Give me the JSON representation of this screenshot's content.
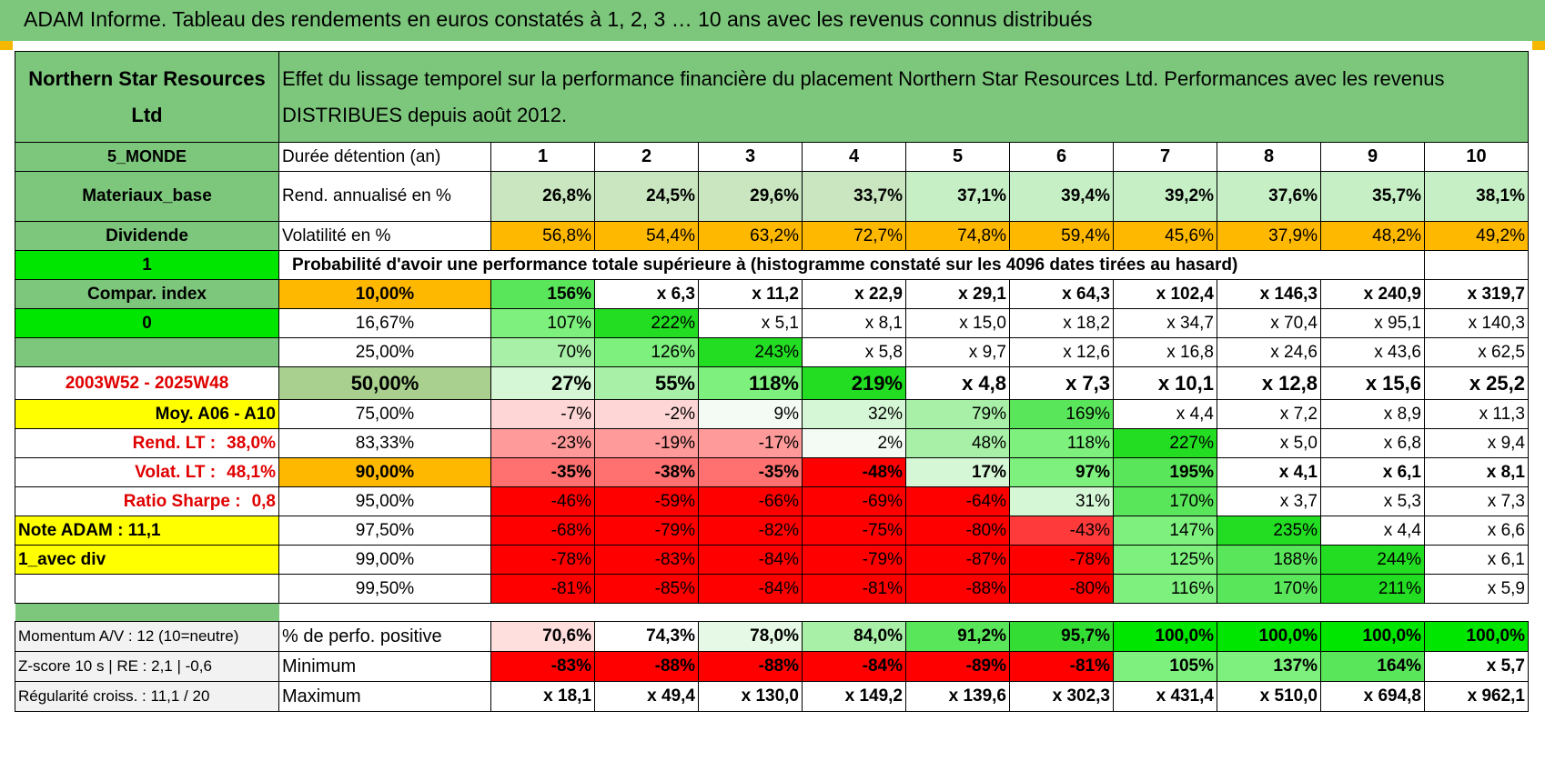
{
  "title": "ADAM Informe. Tableau des rendements en euros constatés à 1, 2, 3 … 10 ans avec les revenus connus distribués",
  "header": {
    "fund_name": "Northern Star Resources Ltd",
    "description": "Effet du lissage temporel sur la performance financière du placement Northern Star Resources Ltd. Performances avec les revenus DISTRIBUES depuis août 2012."
  },
  "side_panel": {
    "zone": "5_MONDE",
    "sector": "Materiaux_base",
    "income_type": "Dividende",
    "flag1": "1",
    "compar_index": "Compar. index",
    "flag2": "0",
    "blank": "",
    "period": "2003W52 - 2025W48",
    "moy": "Moy. A06 - A10",
    "rend_lt_label": "Rend. LT :",
    "rend_lt_value": "38,0%",
    "volat_lt_label": "Volat. LT :",
    "volat_lt_value": "48,1%",
    "sharpe_label": "Ratio Sharpe :",
    "sharpe_value": "0,8",
    "note": "Note ADAM : 11,1",
    "div_type": "1_avec div",
    "momentum": "Momentum A/V : 12 (10=neutre)",
    "zscore": "Z-score 10 s | RE : 2,1 | -0,6",
    "regularite": "Régularité croiss. : 11,1 / 20"
  },
  "table": {
    "duration_label": "Durée détention (an)",
    "years": [
      "1",
      "2",
      "3",
      "4",
      "5",
      "6",
      "7",
      "8",
      "9",
      "10"
    ],
    "rend_label": "Rend. annualisé en %",
    "rend": [
      "26,8%",
      "24,5%",
      "29,6%",
      "33,7%",
      "37,1%",
      "39,4%",
      "39,2%",
      "37,6%",
      "35,7%",
      "38,1%"
    ],
    "vol_label": "Volatilité en %",
    "vol": [
      "56,8%",
      "54,4%",
      "63,2%",
      "72,7%",
      "74,8%",
      "59,4%",
      "45,6%",
      "37,9%",
      "48,2%",
      "49,2%"
    ],
    "prob_title": "Probabilité d'avoir une performance totale supérieure à (histogramme constaté sur les 4096 dates tirées au hasard)",
    "prob_rows": [
      {
        "pct": "10,00%",
        "vals": [
          "156%",
          "x 6,3",
          "x 11,2",
          "x 22,9",
          "x 29,1",
          "x 64,3",
          "x 102,4",
          "x 146,3",
          "x 240,9",
          "x 319,7"
        ]
      },
      {
        "pct": "16,67%",
        "vals": [
          "107%",
          "222%",
          "x 5,1",
          "x 8,1",
          "x 15,0",
          "x 18,2",
          "x 34,7",
          "x 70,4",
          "x 95,1",
          "x 140,3"
        ]
      },
      {
        "pct": "25,00%",
        "vals": [
          "70%",
          "126%",
          "243%",
          "x 5,8",
          "x 9,7",
          "x 12,6",
          "x 16,8",
          "x 24,6",
          "x 43,6",
          "x 62,5"
        ]
      },
      {
        "pct": "50,00%",
        "vals": [
          "27%",
          "55%",
          "118%",
          "219%",
          "x 4,8",
          "x 7,3",
          "x 10,1",
          "x 12,8",
          "x 15,6",
          "x 25,2"
        ]
      },
      {
        "pct": "75,00%",
        "vals": [
          "-7%",
          "-2%",
          "9%",
          "32%",
          "79%",
          "169%",
          "x 4,4",
          "x 7,2",
          "x 8,9",
          "x 11,3"
        ]
      },
      {
        "pct": "83,33%",
        "vals": [
          "-23%",
          "-19%",
          "-17%",
          "2%",
          "48%",
          "118%",
          "227%",
          "x 5,0",
          "x 6,8",
          "x 9,4"
        ]
      },
      {
        "pct": "90,00%",
        "vals": [
          "-35%",
          "-38%",
          "-35%",
          "-48%",
          "17%",
          "97%",
          "195%",
          "x 4,1",
          "x 6,1",
          "x 8,1"
        ]
      },
      {
        "pct": "95,00%",
        "vals": [
          "-46%",
          "-59%",
          "-66%",
          "-69%",
          "-64%",
          "31%",
          "170%",
          "x 3,7",
          "x 5,3",
          "x 7,3"
        ]
      },
      {
        "pct": "97,50%",
        "vals": [
          "-68%",
          "-79%",
          "-82%",
          "-75%",
          "-80%",
          "-43%",
          "147%",
          "235%",
          "x 4,4",
          "x 6,6"
        ]
      },
      {
        "pct": "99,00%",
        "vals": [
          "-78%",
          "-83%",
          "-84%",
          "-79%",
          "-87%",
          "-78%",
          "125%",
          "188%",
          "244%",
          "x 6,1"
        ]
      },
      {
        "pct": "99,50%",
        "vals": [
          "-81%",
          "-85%",
          "-84%",
          "-81%",
          "-88%",
          "-80%",
          "116%",
          "170%",
          "211%",
          "x 5,9"
        ]
      }
    ],
    "pos_label": "% de perfo. positive",
    "pos": [
      "70,6%",
      "74,3%",
      "78,0%",
      "84,0%",
      "91,2%",
      "95,7%",
      "100,0%",
      "100,0%",
      "100,0%",
      "100,0%"
    ],
    "min_label": "Minimum",
    "min": [
      "-83%",
      "-88%",
      "-88%",
      "-84%",
      "-89%",
      "-81%",
      "105%",
      "137%",
      "164%",
      "x 5,7"
    ],
    "max_label": "Maximum",
    "max": [
      "x 18,1",
      "x 49,4",
      "x 130,0",
      "x 149,2",
      "x 139,6",
      "x 302,3",
      "x 431,4",
      "x 510,0",
      "x 694,8",
      "x 962,1"
    ]
  },
  "colors": {
    "header_green": "#7dc77d",
    "orange": "#ffb800",
    "yellow": "#ffff00",
    "bright_green": "#00e600",
    "strong_red": "#ff0000",
    "label_red": "#e00000"
  }
}
